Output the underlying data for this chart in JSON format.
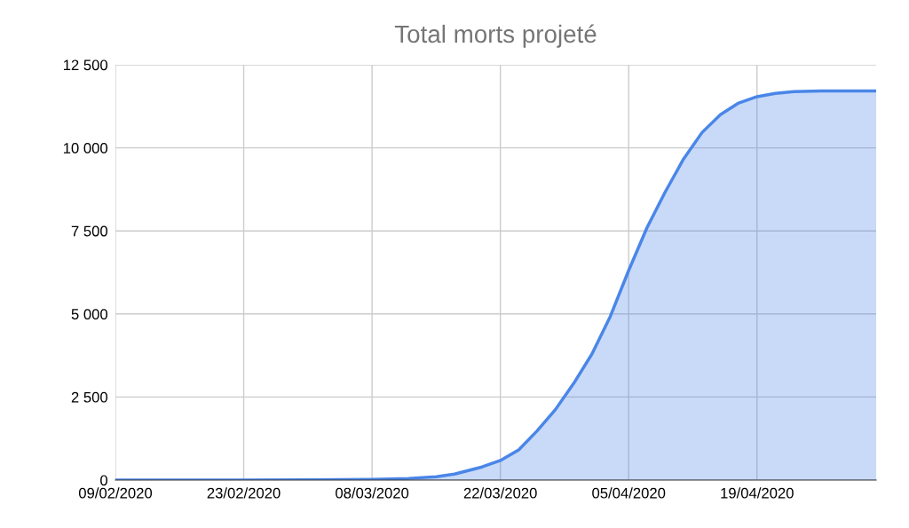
{
  "chart_data": {
    "type": "area",
    "title": "Total morts projeté",
    "x": [
      "2020-02-09",
      "2020-02-23",
      "2020-03-01",
      "2020-03-08",
      "2020-03-12",
      "2020-03-15",
      "2020-03-17",
      "2020-03-20",
      "2020-03-22",
      "2020-03-24",
      "2020-03-26",
      "2020-03-28",
      "2020-03-30",
      "2020-04-01",
      "2020-04-03",
      "2020-04-05",
      "2020-04-07",
      "2020-04-09",
      "2020-04-11",
      "2020-04-13",
      "2020-04-15",
      "2020-04-17",
      "2020-04-19",
      "2020-04-21",
      "2020-04-23",
      "2020-04-26",
      "2020-05-02"
    ],
    "series": [
      {
        "color": "#4a86e8",
        "values": [
          0,
          0,
          5,
          20,
          50,
          100,
          180,
          395,
          590,
          910,
          1480,
          2120,
          2910,
          3800,
          4930,
          6310,
          7600,
          8680,
          9670,
          10460,
          11000,
          11350,
          11540,
          11640,
          11690,
          11710,
          11710
        ]
      }
    ],
    "xlim": [
      "2020-02-09",
      "2020-05-02"
    ],
    "xticks": [
      {
        "value": "2020-02-09",
        "label": "09/02/2020"
      },
      {
        "value": "2020-02-23",
        "label": "23/02/2020"
      },
      {
        "value": "2020-03-08",
        "label": "08/03/2020"
      },
      {
        "value": "2020-03-22",
        "label": "22/03/2020"
      },
      {
        "value": "2020-04-05",
        "label": "05/04/2020"
      },
      {
        "value": "2020-04-19",
        "label": "19/04/2020"
      }
    ],
    "ylim": [
      0,
      12500
    ],
    "yticks": [
      {
        "value": 0,
        "label": "0"
      },
      {
        "value": 2500,
        "label": "2 500"
      },
      {
        "value": 5000,
        "label": "5 000"
      },
      {
        "value": 7500,
        "label": "7 500"
      },
      {
        "value": 10000,
        "label": "10 000"
      },
      {
        "value": 12500,
        "label": "12 500"
      }
    ],
    "grid": true
  }
}
